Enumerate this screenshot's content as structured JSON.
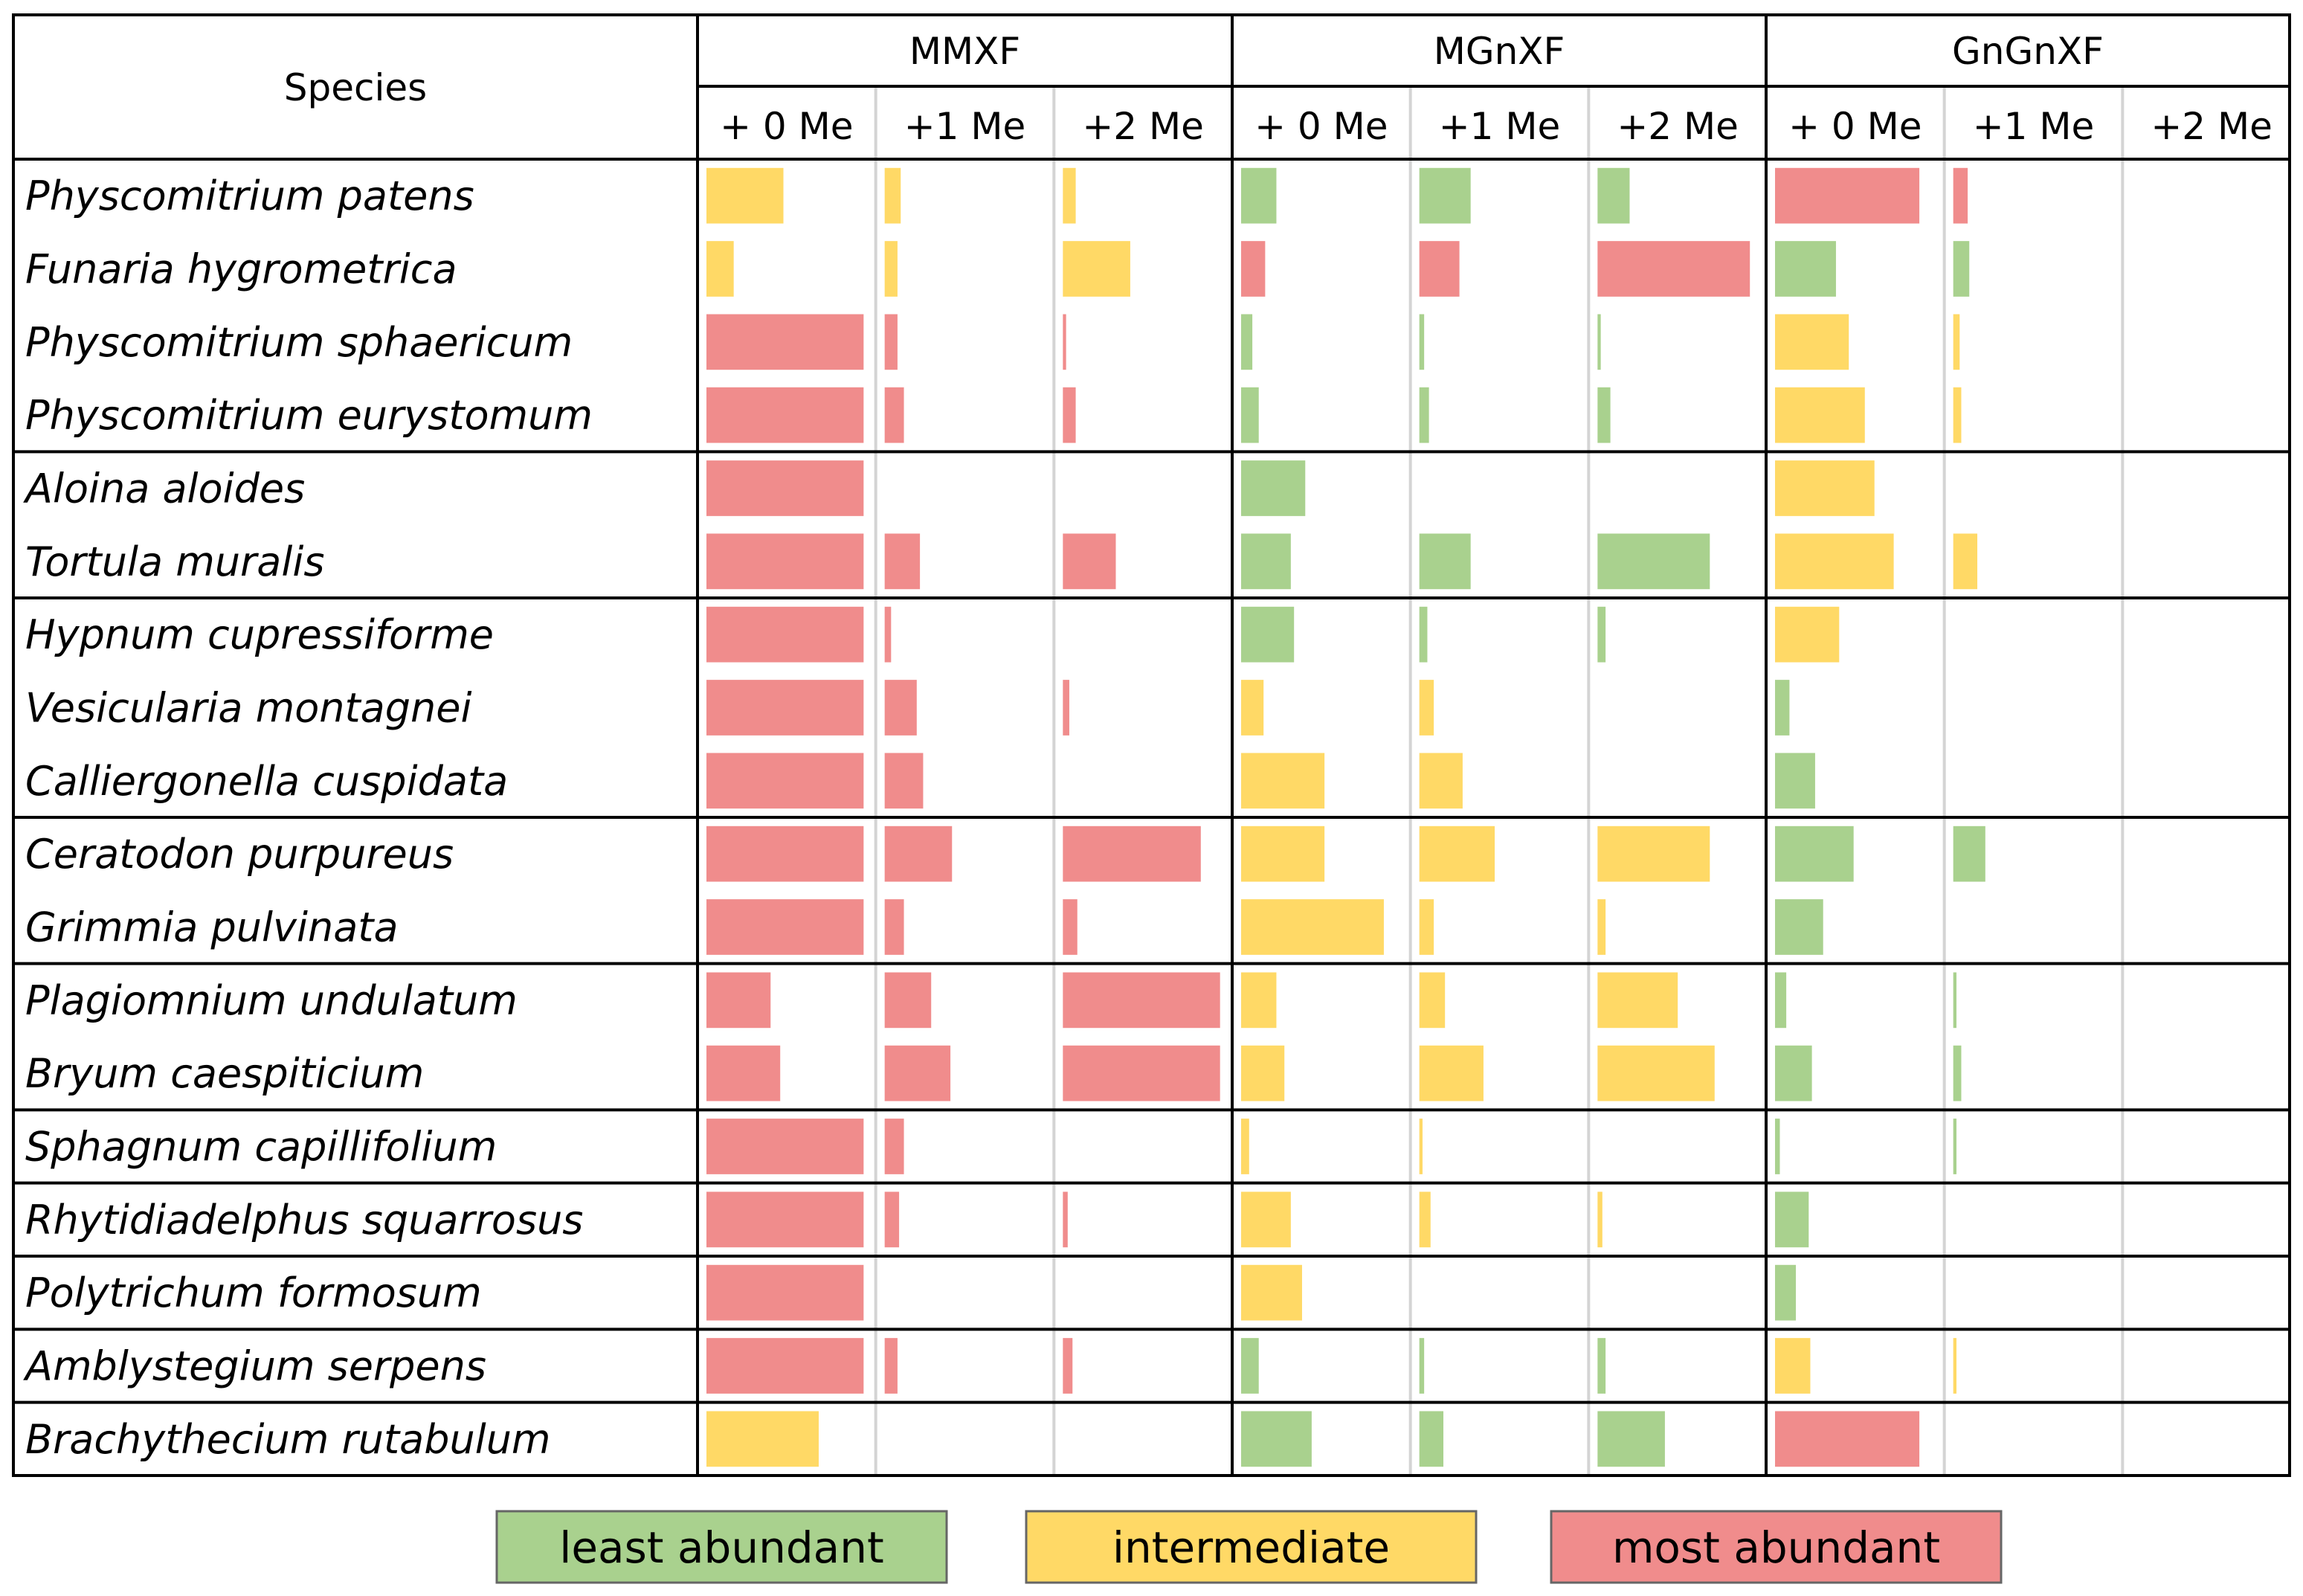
{
  "chart_data": {
    "type": "table",
    "title": "",
    "species_header": "Species",
    "groups": [
      {
        "name": "MMXF",
        "subcolumns": [
          "+ 0 Me",
          "+1 Me",
          "+2 Me"
        ]
      },
      {
        "name": "MGnXF",
        "subcolumns": [
          "+ 0 Me",
          "+1 Me",
          "+2 Me"
        ]
      },
      {
        "name": "GnGnXF",
        "subcolumns": [
          "+ 0 Me",
          "+1 Me",
          "+2 Me"
        ]
      }
    ],
    "column_max": 1.0,
    "category_colors": {
      "least": "#a9d18e",
      "intermediate": "#ffd966",
      "most": "#f08c8c"
    },
    "legend": [
      {
        "key": "least",
        "label": "least abundant"
      },
      {
        "key": "intermediate",
        "label": "intermediate"
      },
      {
        "key": "most",
        "label": "most abundant"
      }
    ],
    "species_groups": [
      [
        "Physcomitrium patens",
        "Funaria hygrometrica",
        "Physcomitrium sphaericum",
        "Physcomitrium eurystomum"
      ],
      [
        "Aloina aloides",
        "Tortula muralis"
      ],
      [
        "Hypnum cupressiforme",
        "Vesicularia montagnei",
        "Calliergonella cuspidata"
      ],
      [
        "Ceratodon purpureus",
        "Grimmia pulvinata"
      ],
      [
        "Plagiomnium undulatum",
        "Bryum caespiticium"
      ],
      [
        "Sphagnum capillifolium"
      ],
      [
        "Rhytidiadelphus squarrosus"
      ],
      [
        "Polytrichum formosum"
      ],
      [
        "Amblystegium serpens"
      ],
      [
        "Brachythecium rutabulum"
      ]
    ],
    "rows": [
      {
        "species": "Physcomitrium patens",
        "values": [
          [
            {
              "c": "intermediate",
              "v": 0.48
            },
            {
              "c": "intermediate",
              "v": 0.1
            },
            {
              "c": "intermediate",
              "v": 0.08
            }
          ],
          [
            {
              "c": "least",
              "v": 0.22
            },
            {
              "c": "least",
              "v": 0.32
            },
            {
              "c": "least",
              "v": 0.2
            }
          ],
          [
            {
              "c": "most",
              "v": 0.9
            },
            {
              "c": "most",
              "v": 0.09
            },
            null
          ]
        ]
      },
      {
        "species": "Funaria hygrometrica",
        "values": [
          [
            {
              "c": "intermediate",
              "v": 0.17
            },
            {
              "c": "intermediate",
              "v": 0.08
            },
            {
              "c": "intermediate",
              "v": 0.42
            }
          ],
          [
            {
              "c": "most",
              "v": 0.15
            },
            {
              "c": "most",
              "v": 0.25
            },
            {
              "c": "most",
              "v": 0.95
            }
          ],
          [
            {
              "c": "least",
              "v": 0.38
            },
            {
              "c": "least",
              "v": 0.1
            },
            null
          ]
        ]
      },
      {
        "species": "Physcomitrium sphaericum",
        "values": [
          [
            {
              "c": "most",
              "v": 0.98
            },
            {
              "c": "most",
              "v": 0.08
            },
            {
              "c": "most",
              "v": 0.02
            }
          ],
          [
            {
              "c": "least",
              "v": 0.07
            },
            {
              "c": "least",
              "v": 0.03
            },
            {
              "c": "least",
              "v": 0.02
            }
          ],
          [
            {
              "c": "intermediate",
              "v": 0.46
            },
            {
              "c": "intermediate",
              "v": 0.04
            },
            null
          ]
        ]
      },
      {
        "species": "Physcomitrium eurystomum",
        "values": [
          [
            {
              "c": "most",
              "v": 0.98
            },
            {
              "c": "most",
              "v": 0.12
            },
            {
              "c": "most",
              "v": 0.08
            }
          ],
          [
            {
              "c": "least",
              "v": 0.11
            },
            {
              "c": "least",
              "v": 0.06
            },
            {
              "c": "least",
              "v": 0.08
            }
          ],
          [
            {
              "c": "intermediate",
              "v": 0.56
            },
            {
              "c": "intermediate",
              "v": 0.05
            },
            null
          ]
        ]
      },
      {
        "species": "Aloina aloides",
        "values": [
          [
            {
              "c": "most",
              "v": 0.98
            },
            null,
            null
          ],
          [
            {
              "c": "least",
              "v": 0.4
            },
            null,
            null
          ],
          [
            {
              "c": "intermediate",
              "v": 0.62
            },
            null,
            null
          ]
        ]
      },
      {
        "species": "Tortula muralis",
        "values": [
          [
            {
              "c": "most",
              "v": 0.98
            },
            {
              "c": "most",
              "v": 0.22
            },
            {
              "c": "most",
              "v": 0.33
            }
          ],
          [
            {
              "c": "least",
              "v": 0.31
            },
            {
              "c": "least",
              "v": 0.32
            },
            {
              "c": "least",
              "v": 0.7
            }
          ],
          [
            {
              "c": "intermediate",
              "v": 0.74
            },
            {
              "c": "intermediate",
              "v": 0.15
            },
            null
          ]
        ]
      },
      {
        "species": "Hypnum cupressiforme",
        "values": [
          [
            {
              "c": "most",
              "v": 0.98
            },
            {
              "c": "most",
              "v": 0.04
            },
            null
          ],
          [
            {
              "c": "least",
              "v": 0.33
            },
            {
              "c": "least",
              "v": 0.05
            },
            {
              "c": "least",
              "v": 0.05
            }
          ],
          [
            {
              "c": "intermediate",
              "v": 0.4
            },
            null,
            null
          ]
        ]
      },
      {
        "species": "Vesicularia montagnei",
        "values": [
          [
            {
              "c": "most",
              "v": 0.98
            },
            {
              "c": "most",
              "v": 0.2
            },
            {
              "c": "most",
              "v": 0.04
            }
          ],
          [
            {
              "c": "intermediate",
              "v": 0.14
            },
            {
              "c": "intermediate",
              "v": 0.09
            },
            null
          ],
          [
            {
              "c": "least",
              "v": 0.09
            },
            null,
            null
          ]
        ]
      },
      {
        "species": "Calliergonella cuspidata",
        "values": [
          [
            {
              "c": "most",
              "v": 0.98
            },
            {
              "c": "most",
              "v": 0.24
            },
            null
          ],
          [
            {
              "c": "intermediate",
              "v": 0.52
            },
            {
              "c": "intermediate",
              "v": 0.27
            },
            null
          ],
          [
            {
              "c": "least",
              "v": 0.25
            },
            null,
            null
          ]
        ]
      },
      {
        "species": "Ceratodon purpureus",
        "values": [
          [
            {
              "c": "most",
              "v": 0.98
            },
            {
              "c": "most",
              "v": 0.42
            },
            {
              "c": "most",
              "v": 0.86
            }
          ],
          [
            {
              "c": "intermediate",
              "v": 0.52
            },
            {
              "c": "intermediate",
              "v": 0.47
            },
            {
              "c": "intermediate",
              "v": 0.7
            }
          ],
          [
            {
              "c": "least",
              "v": 0.49
            },
            {
              "c": "least",
              "v": 0.2
            },
            null
          ]
        ]
      },
      {
        "species": "Grimmia pulvinata",
        "values": [
          [
            {
              "c": "most",
              "v": 0.98
            },
            {
              "c": "most",
              "v": 0.12
            },
            {
              "c": "most",
              "v": 0.09
            }
          ],
          [
            {
              "c": "intermediate",
              "v": 0.89
            },
            {
              "c": "intermediate",
              "v": 0.09
            },
            {
              "c": "intermediate",
              "v": 0.05
            }
          ],
          [
            {
              "c": "least",
              "v": 0.3
            },
            null,
            null
          ]
        ]
      },
      {
        "species": "Plagiomnium undulatum",
        "values": [
          [
            {
              "c": "most",
              "v": 0.4
            },
            {
              "c": "most",
              "v": 0.29
            },
            {
              "c": "most",
              "v": 0.98
            }
          ],
          [
            {
              "c": "intermediate",
              "v": 0.22
            },
            {
              "c": "intermediate",
              "v": 0.16
            },
            {
              "c": "intermediate",
              "v": 0.5
            }
          ],
          [
            {
              "c": "least",
              "v": 0.07
            },
            {
              "c": "least",
              "v": 0.02
            },
            null
          ]
        ]
      },
      {
        "species": "Bryum caespiticium",
        "values": [
          [
            {
              "c": "most",
              "v": 0.46
            },
            {
              "c": "most",
              "v": 0.41
            },
            {
              "c": "most",
              "v": 0.98
            }
          ],
          [
            {
              "c": "intermediate",
              "v": 0.27
            },
            {
              "c": "intermediate",
              "v": 0.4
            },
            {
              "c": "intermediate",
              "v": 0.73
            }
          ],
          [
            {
              "c": "least",
              "v": 0.23
            },
            {
              "c": "least",
              "v": 0.05
            },
            null
          ]
        ]
      },
      {
        "species": "Sphagnum capillifolium",
        "values": [
          [
            {
              "c": "most",
              "v": 0.98
            },
            {
              "c": "most",
              "v": 0.12
            },
            null
          ],
          [
            {
              "c": "intermediate",
              "v": 0.05
            },
            {
              "c": "intermediate",
              "v": 0.02
            },
            null
          ],
          [
            {
              "c": "least",
              "v": 0.03
            },
            {
              "c": "least",
              "v": 0.02
            },
            null
          ]
        ]
      },
      {
        "species": "Rhytidiadelphus squarrosus",
        "values": [
          [
            {
              "c": "most",
              "v": 0.98
            },
            {
              "c": "most",
              "v": 0.09
            },
            {
              "c": "most",
              "v": 0.03
            }
          ],
          [
            {
              "c": "intermediate",
              "v": 0.31
            },
            {
              "c": "intermediate",
              "v": 0.07
            },
            {
              "c": "intermediate",
              "v": 0.03
            }
          ],
          [
            {
              "c": "least",
              "v": 0.21
            },
            null,
            null
          ]
        ]
      },
      {
        "species": "Polytrichum formosum",
        "values": [
          [
            {
              "c": "most",
              "v": 0.98
            },
            null,
            null
          ],
          [
            {
              "c": "intermediate",
              "v": 0.38
            },
            null,
            null
          ],
          [
            {
              "c": "least",
              "v": 0.13
            },
            null,
            null
          ]
        ]
      },
      {
        "species": "Amblystegium serpens",
        "values": [
          [
            {
              "c": "most",
              "v": 0.98
            },
            {
              "c": "most",
              "v": 0.08
            },
            {
              "c": "most",
              "v": 0.06
            }
          ],
          [
            {
              "c": "least",
              "v": 0.11
            },
            {
              "c": "least",
              "v": 0.03
            },
            {
              "c": "least",
              "v": 0.05
            }
          ],
          [
            {
              "c": "intermediate",
              "v": 0.22
            },
            {
              "c": "intermediate",
              "v": 0.02
            },
            null
          ]
        ]
      },
      {
        "species": "Brachythecium rutabulum",
        "values": [
          [
            {
              "c": "intermediate",
              "v": 0.7
            },
            null,
            null
          ],
          [
            {
              "c": "least",
              "v": 0.44
            },
            {
              "c": "least",
              "v": 0.15
            },
            {
              "c": "least",
              "v": 0.42
            }
          ],
          [
            {
              "c": "most",
              "v": 0.9
            },
            null,
            null
          ]
        ]
      }
    ]
  }
}
